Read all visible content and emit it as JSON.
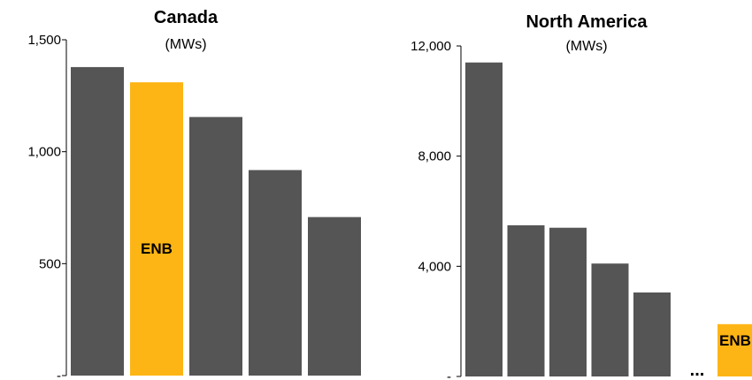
{
  "chart_data": [
    {
      "type": "bar",
      "title": "Canada",
      "subtitle": "(MWs)",
      "ylim": [
        0,
        1500
      ],
      "yticks": [
        {
          "value": 0,
          "label": "-"
        },
        {
          "value": 500,
          "label": "500"
        },
        {
          "value": 1000,
          "label": "1,000"
        },
        {
          "value": 1500,
          "label": "1,500"
        }
      ],
      "values": [
        1378,
        1310,
        1155,
        918,
        708
      ],
      "bar_labels": [
        "",
        "ENB",
        "",
        "",
        ""
      ],
      "highlight_index": 1,
      "grid": false
    },
    {
      "type": "bar",
      "title": "North America",
      "subtitle": "(MWs)",
      "ylim": [
        0,
        12000
      ],
      "yticks": [
        {
          "value": 0,
          "label": "-"
        },
        {
          "value": 4000,
          "label": "4,000"
        },
        {
          "value": 8000,
          "label": "8,000"
        },
        {
          "value": 12000,
          "label": "12,000"
        }
      ],
      "values": [
        11400,
        5490,
        5400,
        4100,
        3050
      ],
      "bar_labels": [
        "",
        "",
        "",
        "",
        ""
      ],
      "highlight_index": -1,
      "grid": false,
      "ellipsis": "...",
      "trailing_bar": {
        "label": "ENB",
        "value": 1900
      }
    }
  ],
  "colors": {
    "bar": "#555555",
    "highlight": "#FDB515"
  }
}
